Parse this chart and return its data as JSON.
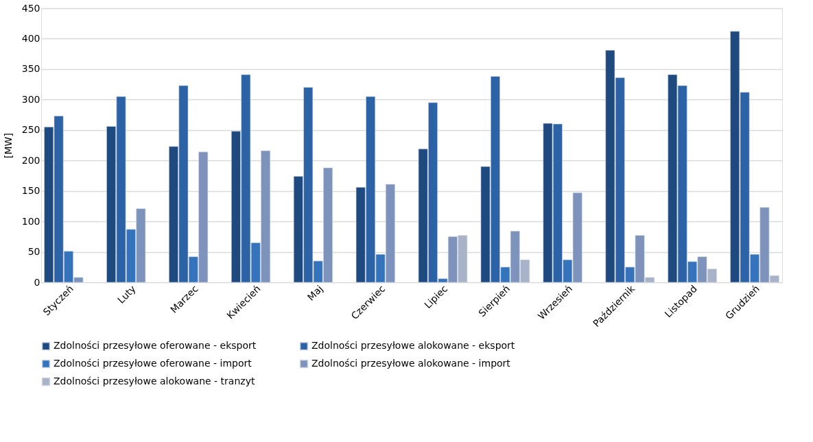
{
  "chart_data": {
    "type": "bar",
    "ylabel": "[MW]",
    "categories": [
      "Styczeń",
      "Luty",
      "Marzec",
      "Kwiecień",
      "Maj",
      "Czerwiec",
      "Lipiec",
      "Sierpień",
      "Wrzesień",
      "Październik",
      "Listopad",
      "Grudzień"
    ],
    "series": [
      {
        "name": "Zdolności przesyłowe oferowane - eksport",
        "color": "#1f4a80",
        "values": [
          255,
          256,
          223,
          248,
          174,
          156,
          219,
          190,
          261,
          381,
          341,
          412
        ]
      },
      {
        "name": "Zdolności przesyłowe alokowane - eksport",
        "color": "#2c62a6",
        "values": [
          273,
          305,
          323,
          341,
          320,
          305,
          295,
          338,
          260,
          336,
          323,
          312
        ]
      },
      {
        "name": "Zdolności przesyłowe oferowane - import",
        "color": "#3574bd",
        "values": [
          51,
          87,
          42,
          65,
          35,
          46,
          6,
          25,
          37,
          25,
          34,
          46
        ]
      },
      {
        "name": "Zdolności przesyłowe alokowane - import",
        "color": "#7e93bb",
        "values": [
          8,
          121,
          214,
          216,
          188,
          161,
          75,
          84,
          147,
          77,
          42,
          123
        ]
      },
      {
        "name": "Zdolności przesyłowe alokowane - tranzyt",
        "color": "#a9b3c8",
        "values": [
          null,
          null,
          null,
          null,
          null,
          null,
          77,
          37,
          null,
          8,
          22,
          11
        ]
      }
    ],
    "ylim": [
      0,
      450
    ],
    "yticks": [
      0,
      50,
      100,
      150,
      200,
      250,
      300,
      350,
      400,
      450
    ],
    "grid": "y",
    "legend": "bottom"
  }
}
